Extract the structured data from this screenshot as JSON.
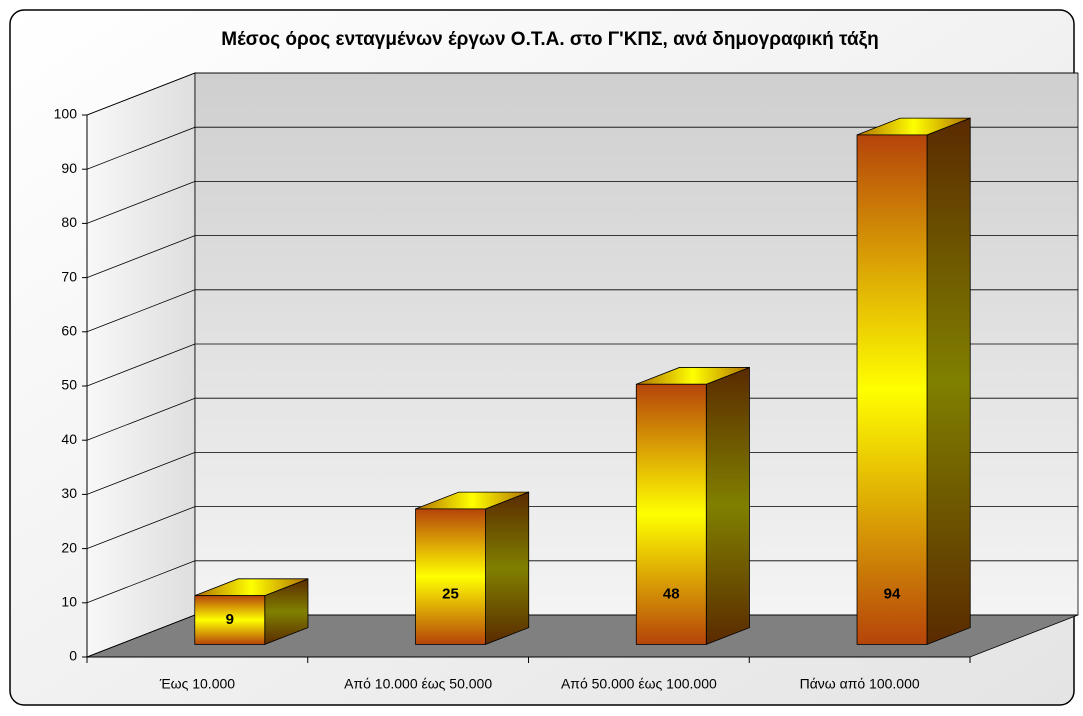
{
  "chart_data": {
    "type": "bar",
    "title": "Μέσος όρος ενταγμένων έργων Ο.Τ.Α. στο Γ'ΚΠΣ, ανά δημογραφική τάξη",
    "categories": [
      "Έως 10.000",
      "Από 10.000 έως 50.000",
      "Από 50.000 έως 100.000",
      "Πάνω από 100.000"
    ],
    "values": [
      9,
      25,
      48,
      94
    ],
    "ylim": [
      0,
      100
    ],
    "yticks": [
      0,
      10,
      20,
      30,
      40,
      50,
      60,
      70,
      80,
      90,
      100
    ],
    "grid": true
  }
}
